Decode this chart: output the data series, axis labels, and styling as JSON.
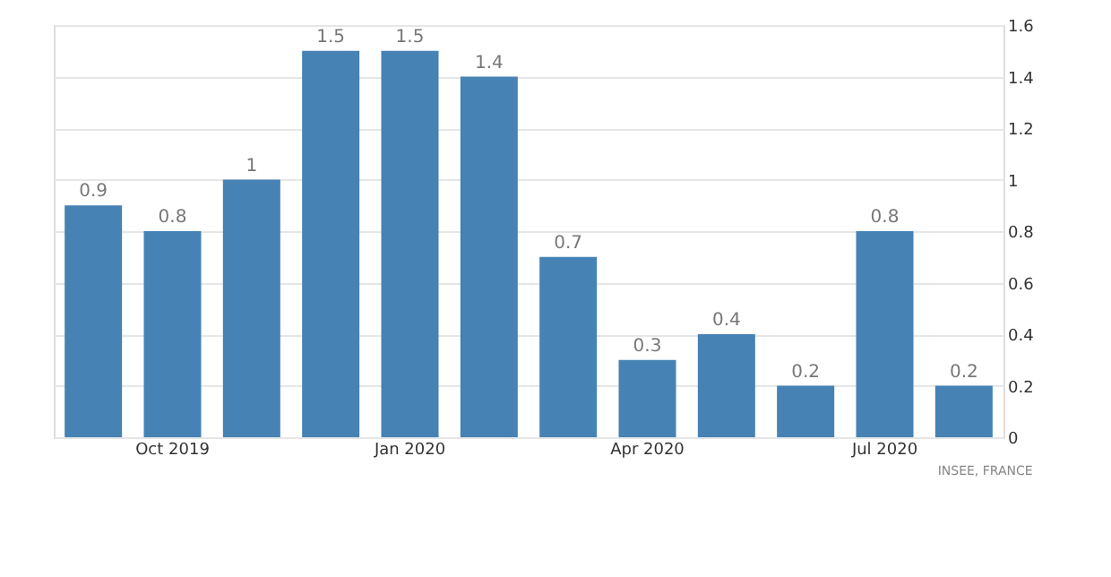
{
  "chart_data": {
    "type": "bar",
    "categories": [
      null,
      "Oct 2019",
      null,
      null,
      "Jan 2020",
      null,
      null,
      "Apr 2020",
      null,
      null,
      "Jul 2020",
      null
    ],
    "values": [
      0.9,
      0.8,
      1,
      1.5,
      1.5,
      1.4,
      0.7,
      0.3,
      0.4,
      0.2,
      0.8,
      0.2
    ],
    "color": "#4682b4",
    "ylim": [
      0,
      1.6
    ],
    "yticks": [
      0,
      0.2,
      0.4,
      0.6,
      0.8,
      1,
      1.2,
      1.4,
      1.6
    ],
    "grid": "y",
    "data_labels": true,
    "annotations": [
      "INSEE, FRANCE"
    ]
  }
}
